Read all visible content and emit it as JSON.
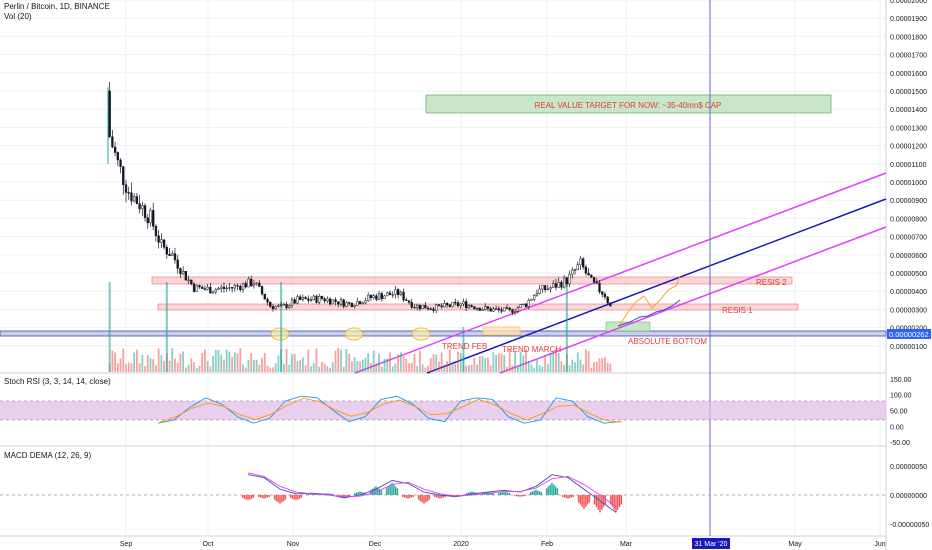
{
  "header": {
    "symbol_line": "Perlin / Bitcoin, 1D, BINANCE",
    "volume_label": "Vol (20)"
  },
  "panes": {
    "stoch_label": "Stoch RSI (3, 3, 14, 14, close)",
    "macd_label": "MACD DEMA (12, 26, 9)"
  },
  "price_axis": {
    "ticks": [
      "0.00002100",
      "0.00002000",
      "0.00001900",
      "0.00001800",
      "0.00001700",
      "0.00001600",
      "0.00001500",
      "0.00001400",
      "0.00001300",
      "0.00001200",
      "0.00001100",
      "0.00001000",
      "0.00000900",
      "0.00000800",
      "0.00000700",
      "0.00000600",
      "0.00000500",
      "0.00000400",
      "0.00000300",
      "0.00000200",
      "0.00000100"
    ],
    "current_price": "0.00000262"
  },
  "stoch_axis": {
    "ticks": [
      "150.00",
      "100.00",
      "50.00",
      "0.00",
      "-50.00"
    ]
  },
  "macd_axis": {
    "ticks": [
      "0.00000050",
      "0.00000000",
      "-0.00000050"
    ]
  },
  "time_axis": {
    "ticks": [
      "Sep",
      "Oct",
      "Nov",
      "Dec",
      "2020",
      "Feb",
      "Mar",
      "Apr",
      "May",
      "Jun"
    ],
    "highlight_date": "31 Mar '20"
  },
  "annotations": {
    "target_box": "REAL VALUE TARGET FOR NOW: ~35-40mn$ CAP",
    "resis2": "RESIS 2",
    "resis1": "RESIS 1",
    "absolute_bottom": "ABSOLUTE BOTTOM",
    "trend_feb": "TREND FEB",
    "trend_march": "TREND MARCH"
  },
  "colors": {
    "up": "#26a69a",
    "down": "#ef5350",
    "candle": "#131722",
    "channel": "#e040fb",
    "midline": "#1a1ab8",
    "accent_blue": "#2962ff",
    "stoch_band": "#e1bee7",
    "annotation_red": "#e53935",
    "target_fill": "#c8e6c9",
    "zone_fill": "#f8c8c8",
    "projection": "#f5a623"
  },
  "chart_data": [
    {
      "type": "candlestick",
      "title": "Perlin / Bitcoin, 1D, BINANCE",
      "x_unit": "date",
      "y_unit": "BTC",
      "ylim": [
        0,
        2.15e-05
      ],
      "close": [
        {
          "x": "2019-08-26",
          "y": 1.25e-05
        },
        {
          "x": "2019-08-29",
          "y": 1.1e-05
        },
        {
          "x": "2019-09-02",
          "y": 9.5e-06
        },
        {
          "x": "2019-09-06",
          "y": 8.8e-06
        },
        {
          "x": "2019-09-10",
          "y": 8e-06
        },
        {
          "x": "2019-09-14",
          "y": 6.5e-06
        },
        {
          "x": "2019-09-18",
          "y": 6e-06
        },
        {
          "x": "2019-09-22",
          "y": 5e-06
        },
        {
          "x": "2019-09-26",
          "y": 4.2e-06
        },
        {
          "x": "2019-10-02",
          "y": 4.1e-06
        },
        {
          "x": "2019-10-10",
          "y": 4.2e-06
        },
        {
          "x": "2019-10-18",
          "y": 4.5e-06
        },
        {
          "x": "2019-10-24",
          "y": 3.2e-06
        },
        {
          "x": "2019-10-28",
          "y": 3.1e-06
        },
        {
          "x": "2019-11-03",
          "y": 3.5e-06
        },
        {
          "x": "2019-11-12",
          "y": 3.6e-06
        },
        {
          "x": "2019-11-22",
          "y": 3.3e-06
        },
        {
          "x": "2019-12-01",
          "y": 3.7e-06
        },
        {
          "x": "2019-12-10",
          "y": 3.9e-06
        },
        {
          "x": "2019-12-16",
          "y": 3.2e-06
        },
        {
          "x": "2019-12-24",
          "y": 3.1e-06
        },
        {
          "x": "2020-01-03",
          "y": 3.3e-06
        },
        {
          "x": "2020-01-12",
          "y": 3e-06
        },
        {
          "x": "2020-01-20",
          "y": 2.9e-06
        },
        {
          "x": "2020-01-26",
          "y": 3.3e-06
        },
        {
          "x": "2020-01-30",
          "y": 4e-06
        },
        {
          "x": "2020-02-04",
          "y": 4.2e-06
        },
        {
          "x": "2020-02-10",
          "y": 4.6e-06
        },
        {
          "x": "2020-02-15",
          "y": 5.5e-06
        },
        {
          "x": "2020-02-19",
          "y": 4.5e-06
        },
        {
          "x": "2020-02-24",
          "y": 3.8e-06
        },
        {
          "x": "2020-02-27",
          "y": 2.8e-06
        }
      ],
      "volume_spikes": [
        {
          "x": "2019-08-26",
          "value": "high"
        },
        {
          "x": "2019-09-16",
          "value": "high"
        },
        {
          "x": "2019-10-28",
          "value": "high"
        },
        {
          "x": "2020-01-03",
          "value": "medium"
        },
        {
          "x": "2020-02-10",
          "value": "high"
        }
      ],
      "zones": [
        {
          "name": "RESIS 2",
          "from": 5.5e-06,
          "to": 5.8e-06
        },
        {
          "name": "RESIS 1",
          "from": 4e-06,
          "to": 4.2e-06
        },
        {
          "name": "current",
          "from": 2.6e-06,
          "to": 2.7e-06
        },
        {
          "name": "target",
          "from": 1.5e-06,
          "to": 1.6e-06
        }
      ],
      "channel_lines": [
        {
          "name": "TREND FEB",
          "from": {
            "x": "2019-12-06",
            "y": 2e-06
          },
          "to": {
            "x": "2020-06-01",
            "y": 1.22e-05
          }
        },
        {
          "name": "TREND MARCH",
          "from": {
            "x": "2019-12-26",
            "y": 2e-06
          },
          "to": {
            "x": "2020-06-01",
            "y": 1.03e-05
          }
        },
        {
          "name": "lower channel",
          "from": {
            "x": "2020-01-24",
            "y": 2e-06
          },
          "to": {
            "x": "2020-06-01",
            "y": 8.8e-06
          }
        }
      ],
      "vertical_marker": "2020-03-31"
    },
    {
      "type": "line",
      "title": "Stoch RSI (3, 3, 14, 14, close)",
      "ylim": [
        -60,
        150
      ],
      "band": [
        20,
        80
      ],
      "series": [
        {
          "values": [
            10,
            20,
            60,
            90,
            70,
            30,
            10,
            25,
            80,
            95,
            90,
            50,
            15,
            30,
            85,
            95,
            70,
            25,
            15,
            80,
            90,
            85,
            30,
            10,
            20,
            90,
            80,
            30,
            10,
            15
          ]
        }
      ]
    },
    {
      "type": "line",
      "title": "MACD DEMA (12, 26, 9)",
      "ylim": [
        -6e-07,
        7e-07
      ],
      "series": [
        {
          "values": [
            3.5e-07,
            3e-07,
            1e-07,
            2e-08,
            3e-08,
            1e-08,
            -5e-08,
            0.0,
            1e-07,
            2.5e-07,
            2e-07,
            5e-08,
            0.0,
            -3e-08,
            2e-08,
            5e-08,
            8e-08,
            5e-08,
            1.5e-07,
            3.5e-07,
            3e-07,
            1e-07,
            -1e-07,
            -3e-07
          ]
        },
        {
          "values": [
            3.8e-07,
            3.2e-07,
            1.5e-07,
            5e-08,
            2e-08,
            0.0,
            -3e-08,
            -2e-08,
            5e-08,
            1.8e-07,
            2.2e-07,
            1e-07,
            2e-08,
            -2e-08,
            0.0,
            3e-08,
            6e-08,
            6e-08,
            1.2e-07,
            2.8e-07,
            3.2e-07,
            1.8e-07,
            0.0,
            -2e-07
          ]
        }
      ]
    }
  ]
}
